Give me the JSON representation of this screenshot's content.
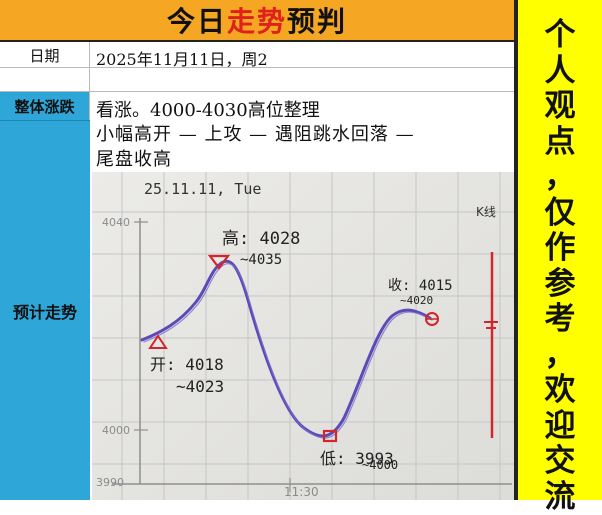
{
  "title": {
    "prefix": "今日",
    "highlight": "走势",
    "suffix": "预判"
  },
  "date": {
    "label": "日期",
    "value": "2025年11月11日，周2"
  },
  "trend": {
    "label": "整体涨跌",
    "value": "看涨。4000-4030高位整理"
  },
  "forecast": {
    "label": "预计走势",
    "detail_line1": "小幅高开 — 上攻 — 遇阻跳水回落 —",
    "detail_line2": "尾盘收高"
  },
  "sketch": {
    "header": "25.11.11, Tue",
    "y_top": "4040",
    "y_mid": "4000",
    "y_bottom": "3990",
    "x_label": "11:30",
    "right_label": "K线",
    "high_note_1": "高: 4028",
    "high_note_2": "~4035",
    "open_note_1": "开: 4018",
    "open_note_2": "~4023",
    "low_note_1": "低: 3993",
    "low_note_2": "~4000",
    "close_note_1": "收: 4015",
    "close_note_2": "~4020",
    "ink_color": "#5b4bb5",
    "mark_color": "#d3262a"
  },
  "side_chars": [
    "个",
    "人",
    "观",
    "点",
    "，",
    "仅",
    "作",
    "参",
    "考",
    "，",
    "欢",
    "迎",
    "交",
    "流"
  ]
}
